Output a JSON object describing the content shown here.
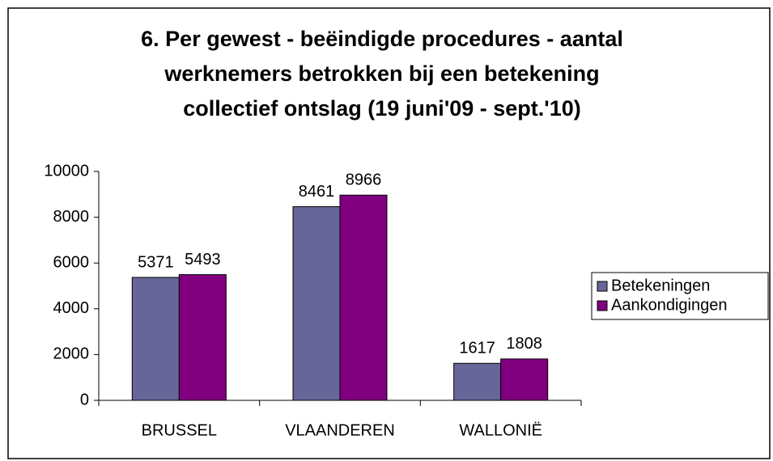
{
  "chart_data": {
    "type": "bar",
    "title": [
      "6. Per gewest - beëindigde procedures - aantal",
      "werknemers betrokken bij een betekening",
      "collectief ontslag (19 juni'09 - sept.'10)"
    ],
    "categories": [
      "BRUSSEL",
      "VLAANDEREN",
      "WALLONIË"
    ],
    "series": [
      {
        "name": "Betekeningen",
        "color": "#666699",
        "values": [
          5371,
          8461,
          1617
        ]
      },
      {
        "name": "Aankondigingen",
        "color": "#800080",
        "values": [
          5493,
          8966,
          1808
        ]
      }
    ],
    "ylim": [
      0,
      10000
    ],
    "yticks": [
      0,
      2000,
      4000,
      6000,
      8000,
      10000
    ],
    "grid": false,
    "legend": "right"
  }
}
